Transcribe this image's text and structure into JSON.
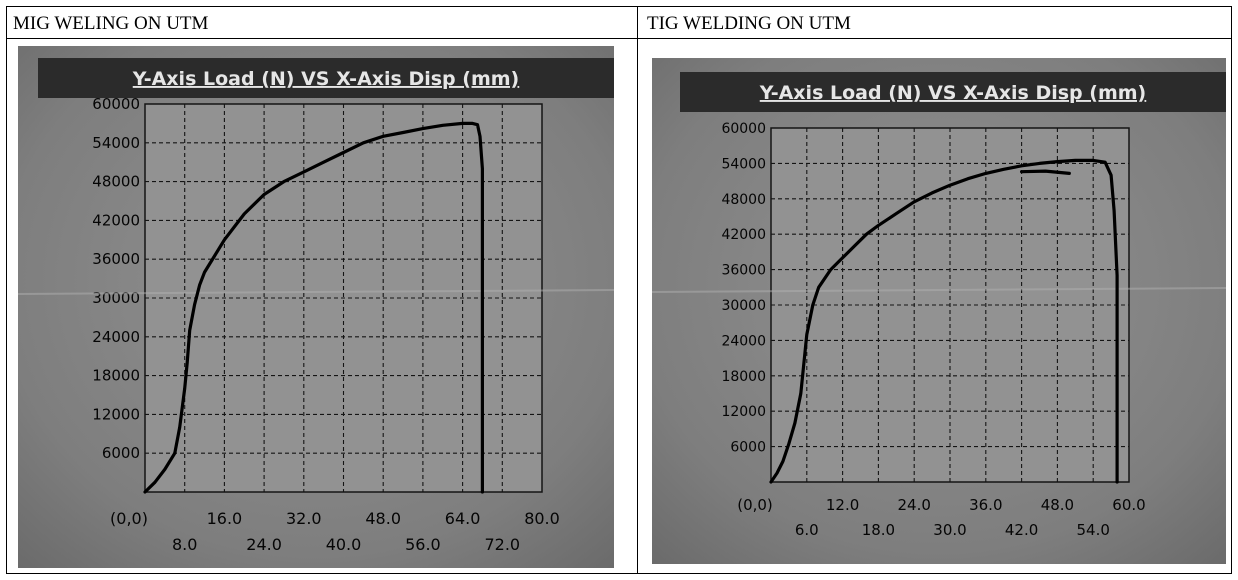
{
  "captions": {
    "left": "MIG WELING ON UTM",
    "right": "TIG WELDING ON UTM"
  },
  "colors": {
    "photo_bg": "#7e7e7e",
    "plot_bg": "#929292",
    "title_bar": "#2b2b2b",
    "title_text": "#e6e6e6",
    "curve": "#000000",
    "grid": "#141414",
    "tick_text": "#050505"
  },
  "chart_data": [
    {
      "type": "line",
      "title": "Y-Axis Load (N) VS X-Axis Disp (mm)",
      "origin_label": "(0,0)",
      "xlim": [
        0,
        80
      ],
      "ylim": [
        0,
        60000
      ],
      "grid": true,
      "yticks": [
        {
          "value": 6000,
          "label": "6000"
        },
        {
          "value": 12000,
          "label": "12000"
        },
        {
          "value": 18000,
          "label": "18000"
        },
        {
          "value": 24000,
          "label": "24000"
        },
        {
          "value": 30000,
          "label": "30000"
        },
        {
          "value": 36000,
          "label": "36000"
        },
        {
          "value": 42000,
          "label": "42000"
        },
        {
          "value": 48000,
          "label": "48000"
        },
        {
          "value": 54000,
          "label": "54000"
        },
        {
          "value": 60000,
          "label": "60000"
        }
      ],
      "xticks_upper": [
        {
          "value": 16,
          "label": "16.0"
        },
        {
          "value": 32,
          "label": "32.0"
        },
        {
          "value": 48,
          "label": "48.0"
        },
        {
          "value": 64,
          "label": "64.0"
        },
        {
          "value": 80,
          "label": "80.0"
        }
      ],
      "xticks_lower": [
        {
          "value": 8,
          "label": "8.0"
        },
        {
          "value": 24,
          "label": "24.0"
        },
        {
          "value": 40,
          "label": "40.0"
        },
        {
          "value": 56,
          "label": "56.0"
        },
        {
          "value": 72,
          "label": "72.0"
        }
      ],
      "series": [
        {
          "x": [
            0,
            2,
            4,
            6,
            7,
            8,
            8.5,
            9,
            10,
            11,
            12,
            14,
            16,
            18,
            20,
            24,
            28,
            32,
            36,
            40,
            44,
            48,
            52,
            56,
            60,
            64,
            66,
            67,
            67.5,
            68,
            68,
            68,
            68
          ],
          "y": [
            0,
            1500,
            3500,
            6000,
            10000,
            16000,
            20000,
            25000,
            29000,
            32000,
            34000,
            36500,
            39000,
            41000,
            43000,
            46000,
            48000,
            49500,
            51000,
            52500,
            54000,
            55000,
            55600,
            56200,
            56700,
            57000,
            57000,
            56800,
            55000,
            50000,
            36000,
            15000,
            0
          ]
        }
      ]
    },
    {
      "type": "line",
      "title": "Y-Axis Load (N) VS X-Axis Disp (mm)",
      "origin_label": "(0,0)",
      "xlim": [
        0,
        60
      ],
      "ylim": [
        0,
        60000
      ],
      "grid": true,
      "yticks": [
        {
          "value": 6000,
          "label": "6000"
        },
        {
          "value": 12000,
          "label": "12000"
        },
        {
          "value": 18000,
          "label": "18000"
        },
        {
          "value": 24000,
          "label": "24000"
        },
        {
          "value": 30000,
          "label": "30000"
        },
        {
          "value": 36000,
          "label": "36000"
        },
        {
          "value": 42000,
          "label": "42000"
        },
        {
          "value": 48000,
          "label": "48000"
        },
        {
          "value": 54000,
          "label": "54000"
        },
        {
          "value": 60000,
          "label": "60000"
        }
      ],
      "xticks_upper": [
        {
          "value": 12,
          "label": "12.0"
        },
        {
          "value": 24,
          "label": "24.0"
        },
        {
          "value": 36,
          "label": "36.0"
        },
        {
          "value": 48,
          "label": "48.0"
        },
        {
          "value": 60,
          "label": "60.0"
        }
      ],
      "xticks_lower": [
        {
          "value": 6,
          "label": "6.0"
        },
        {
          "value": 18,
          "label": "18.0"
        },
        {
          "value": 30,
          "label": "30.0"
        },
        {
          "value": 42,
          "label": "42.0"
        },
        {
          "value": 54,
          "label": "54.0"
        }
      ],
      "series": [
        {
          "x": [
            0,
            1,
            2,
            3,
            4,
            5,
            5.5,
            6,
            7,
            8,
            10,
            12,
            14,
            16,
            18,
            21,
            24,
            27,
            30,
            33,
            36,
            39,
            42,
            45,
            48,
            51,
            54,
            56,
            57,
            57.5,
            58,
            58,
            58,
            58
          ],
          "y": [
            0,
            1500,
            3500,
            6500,
            10000,
            15000,
            20000,
            25000,
            30000,
            33000,
            36000,
            38000,
            40000,
            42000,
            43500,
            45500,
            47500,
            49000,
            50300,
            51400,
            52300,
            53000,
            53600,
            54000,
            54300,
            54500,
            54500,
            54200,
            52000,
            46000,
            35000,
            15000,
            0,
            0
          ]
        },
        {
          "x": [
            42,
            46,
            50
          ],
          "y": [
            52600,
            52700,
            52300
          ]
        }
      ]
    }
  ]
}
